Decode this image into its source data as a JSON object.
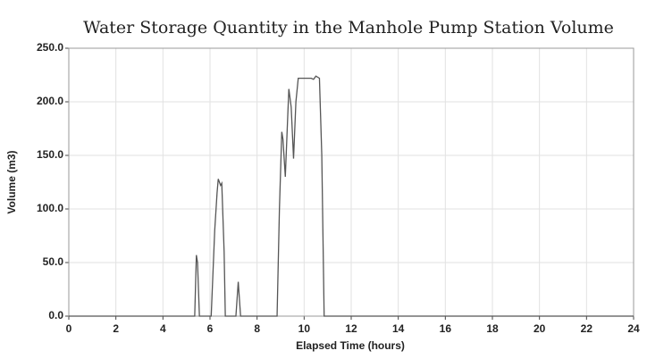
{
  "chart_data": {
    "type": "line",
    "title": "Water Storage Quantity in the Manhole Pump Station Volume",
    "x_label": "Elapsed Time (hours)",
    "y_label": "Volume (m3)",
    "x": [
      0,
      5.35,
      5.42,
      5.47,
      5.55,
      6.05,
      6.2,
      6.3,
      6.35,
      6.45,
      6.5,
      6.6,
      6.65,
      7.1,
      7.2,
      7.3,
      8.85,
      8.95,
      9.05,
      9.1,
      9.2,
      9.3,
      9.35,
      9.45,
      9.55,
      9.65,
      9.75,
      10.0,
      10.3,
      10.4,
      10.5,
      10.65,
      10.75,
      10.85,
      24
    ],
    "values": [
      0,
      0,
      57,
      50,
      0,
      0,
      80,
      115,
      128,
      122,
      124,
      60,
      0,
      0,
      32,
      0,
      0,
      100,
      172,
      165,
      130,
      185,
      212,
      195,
      147,
      200,
      222,
      222,
      222,
      221,
      224,
      222,
      150,
      0,
      0
    ],
    "color": "#555555",
    "xlim": [
      0,
      24
    ],
    "xticks": [
      0,
      2,
      4,
      6,
      8,
      10,
      12,
      14,
      16,
      18,
      20,
      22,
      24
    ],
    "ylim": [
      0,
      250
    ],
    "yticks": [
      {
        "value": 0,
        "label": "0.0"
      },
      {
        "value": 50,
        "label": "50.0"
      },
      {
        "value": 100,
        "label": "100.0"
      },
      {
        "value": 150,
        "label": "150.0"
      },
      {
        "value": 200,
        "label": "200.0"
      },
      {
        "value": 250,
        "label": "250.0"
      }
    ],
    "grid": true
  }
}
